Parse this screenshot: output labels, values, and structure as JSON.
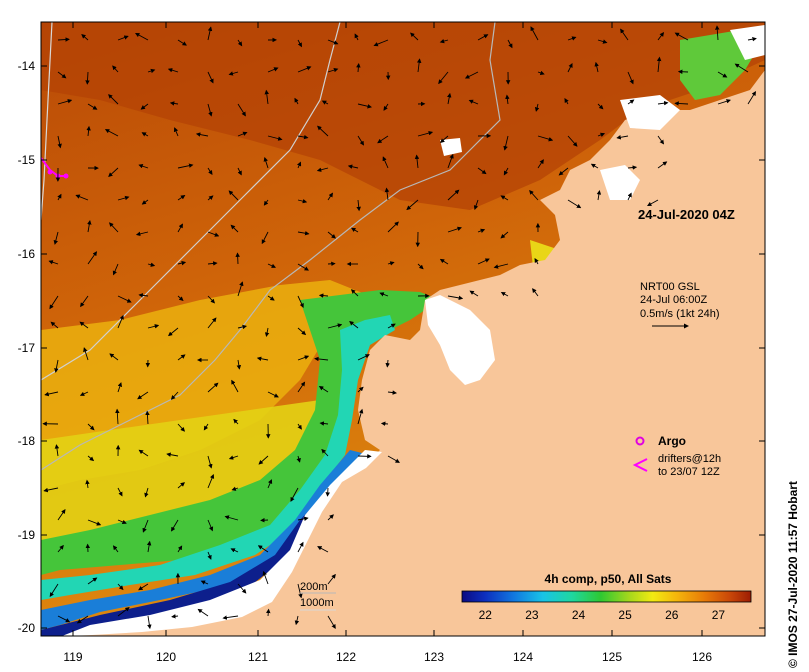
{
  "map": {
    "date_label": "24-Jul-2020 04Z",
    "x_ticks": [
      "119",
      "120",
      "121",
      "122",
      "123",
      "124",
      "125",
      "126"
    ],
    "y_ticks": [
      "-14",
      "-15",
      "-16",
      "-17",
      "-18",
      "-19",
      "-20"
    ],
    "current_legend": {
      "source": "NRT00 GSL",
      "time": "24-Jul 06:00Z",
      "scale": "0.5m/s (1kt 24h)"
    },
    "markers_legend": {
      "argo_label": "Argo",
      "drifters_line1": "drifters@12h",
      "drifters_line2": "to 23/07 12Z",
      "argo_color": "#e000e0",
      "drifter_color": "#ff00ff"
    },
    "bathymetry_legend": {
      "depth1": "200m",
      "depth2": "1000m"
    },
    "colorbar": {
      "title": "4h comp, p50, All Sats",
      "min": 21.5,
      "max": 27.7,
      "ticks": [
        "22",
        "23",
        "24",
        "25",
        "26",
        "27"
      ]
    },
    "credit": "© IMOS 27-Jul-2020 11:57 Hobart",
    "colors": {
      "land": "#f8c69a",
      "cloud": "#ffffff",
      "warm": "#c8530a",
      "cool": "#1a2f9c"
    }
  }
}
